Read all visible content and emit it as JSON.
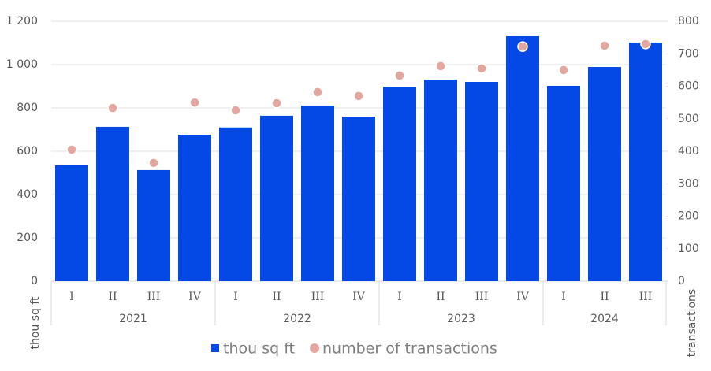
{
  "chart_data": {
    "type": "bar-dot",
    "groups": [
      {
        "name": "2021",
        "categories": [
          "I",
          "II",
          "III",
          "IV"
        ]
      },
      {
        "name": "2022",
        "categories": [
          "I",
          "II",
          "III",
          "IV"
        ]
      },
      {
        "name": "2023",
        "categories": [
          "I",
          "II",
          "III",
          "IV"
        ]
      },
      {
        "name": "2024",
        "categories": [
          "I",
          "II",
          "III"
        ]
      }
    ],
    "series": [
      {
        "name": "thou sq ft",
        "type": "bar",
        "color": "#0448e6",
        "axis": "y",
        "values": [
          535,
          713,
          513,
          676,
          710,
          764,
          811,
          760,
          898,
          931,
          920,
          1131,
          902,
          989,
          1102
        ]
      },
      {
        "name": "number of transactions",
        "type": "dot",
        "color": "#e4a79f",
        "axis": "y2",
        "values": [
          405,
          533,
          364,
          550,
          526,
          548,
          582,
          570,
          633,
          662,
          655,
          722,
          650,
          725,
          730
        ]
      }
    ],
    "ylabel": "thou sq ft",
    "y2label": "transactions",
    "ylim": [
      0,
      1200
    ],
    "yticks": [
      0,
      200,
      400,
      600,
      800,
      {
        "value": 1000,
        "label": "1 000"
      },
      {
        "value": 1200,
        "label": "1 200"
      }
    ],
    "y2lim": [
      0,
      800
    ],
    "y2ticks": [
      0,
      100,
      200,
      300,
      400,
      500,
      600,
      700,
      800
    ],
    "grid": true
  }
}
